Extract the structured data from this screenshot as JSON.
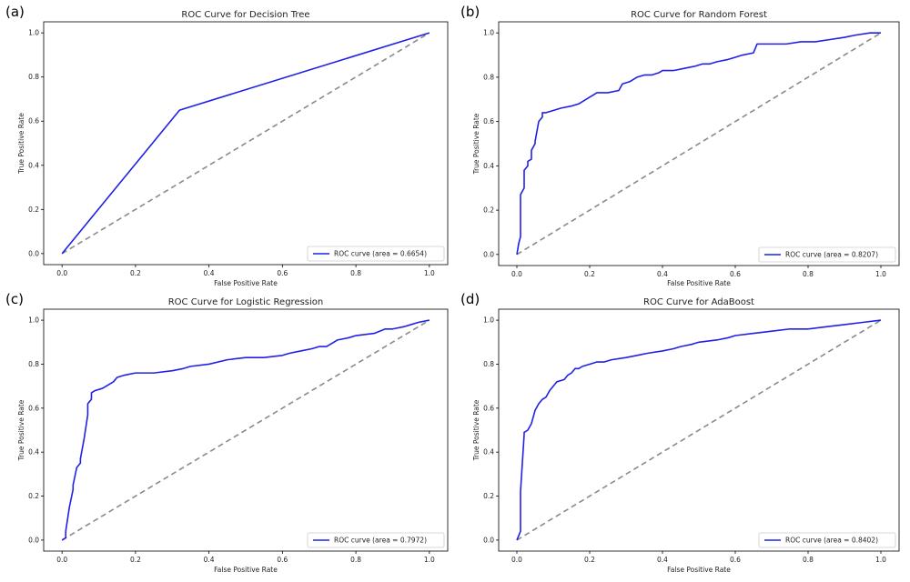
{
  "figure": {
    "colors": {
      "roc_line": "#2121e6",
      "diagonal": "#8a8a8a",
      "axis": "#000000"
    }
  },
  "chart_data": [
    {
      "panel": "(a)",
      "type": "line",
      "title": "ROC Curve for Decision Tree",
      "xlabel": "False Positive Rate",
      "ylabel": "True Positive Rate",
      "xlim": [
        -0.05,
        1.05
      ],
      "ylim": [
        -0.05,
        1.05
      ],
      "xticks": [
        "0.0",
        "0.2",
        "0.4",
        "0.6",
        "0.8",
        "1.0"
      ],
      "yticks": [
        "0.0",
        "0.2",
        "0.4",
        "0.6",
        "0.8",
        "1.0"
      ],
      "grid": false,
      "legend_position": "bottom-right",
      "series": [
        {
          "name": "ROC curve (area = 0.6654)",
          "x": [
            0.0,
            0.32,
            1.0
          ],
          "y": [
            0.0,
            0.65,
            1.0
          ]
        }
      ],
      "reference_line": {
        "x": [
          0,
          1
        ],
        "y": [
          0,
          1
        ],
        "style": "dashed"
      }
    },
    {
      "panel": "(b)",
      "type": "line",
      "title": "ROC Curve for Random Forest",
      "xlabel": "False Positive Rate",
      "ylabel": "True Positive Rate",
      "xlim": [
        -0.05,
        1.05
      ],
      "ylim": [
        -0.05,
        1.05
      ],
      "xticks": [
        "0.0",
        "0.2",
        "0.4",
        "0.6",
        "0.8",
        "1.0"
      ],
      "yticks": [
        "0.0",
        "0.2",
        "0.4",
        "0.6",
        "0.8",
        "1.0"
      ],
      "grid": false,
      "legend_position": "bottom-right",
      "series": [
        {
          "name": "ROC curve (area = 0.8207)",
          "x": [
            0,
            0.005,
            0.01,
            0.01,
            0.02,
            0.02,
            0.03,
            0.03,
            0.04,
            0.04,
            0.05,
            0.05,
            0.06,
            0.07,
            0.07,
            0.08,
            0.1,
            0.12,
            0.15,
            0.17,
            0.19,
            0.2,
            0.21,
            0.22,
            0.25,
            0.28,
            0.29,
            0.31,
            0.33,
            0.35,
            0.37,
            0.39,
            0.4,
            0.43,
            0.46,
            0.49,
            0.51,
            0.53,
            0.55,
            0.58,
            0.6,
            0.62,
            0.65,
            0.66,
            0.7,
            0.74,
            0.78,
            0.82,
            0.86,
            0.9,
            0.93,
            0.97,
            1.0
          ],
          "y": [
            0,
            0.05,
            0.08,
            0.27,
            0.3,
            0.38,
            0.4,
            0.42,
            0.43,
            0.47,
            0.5,
            0.51,
            0.6,
            0.62,
            0.64,
            0.64,
            0.65,
            0.66,
            0.67,
            0.68,
            0.7,
            0.71,
            0.72,
            0.73,
            0.73,
            0.74,
            0.77,
            0.78,
            0.8,
            0.81,
            0.81,
            0.82,
            0.83,
            0.83,
            0.84,
            0.85,
            0.86,
            0.86,
            0.87,
            0.88,
            0.89,
            0.9,
            0.91,
            0.95,
            0.95,
            0.95,
            0.96,
            0.96,
            0.97,
            0.98,
            0.99,
            1.0,
            1.0
          ]
        }
      ],
      "reference_line": {
        "x": [
          0,
          1
        ],
        "y": [
          0,
          1
        ],
        "style": "dashed"
      }
    },
    {
      "panel": "(c)",
      "type": "line",
      "title": "ROC Curve for Logistic Regression",
      "xlabel": "False Positive Rate",
      "ylabel": "True Positive Rate",
      "xlim": [
        -0.05,
        1.05
      ],
      "ylim": [
        -0.05,
        1.05
      ],
      "xticks": [
        "0.0",
        "0.2",
        "0.4",
        "0.6",
        "0.8",
        "1.0"
      ],
      "yticks": [
        "0.0",
        "0.2",
        "0.4",
        "0.6",
        "0.8",
        "1.0"
      ],
      "grid": false,
      "legend_position": "bottom-right",
      "series": [
        {
          "name": "ROC curve (area = 0.7972)",
          "x": [
            0,
            0.01,
            0.01,
            0.02,
            0.03,
            0.03,
            0.04,
            0.05,
            0.05,
            0.06,
            0.07,
            0.07,
            0.08,
            0.08,
            0.09,
            0.09,
            0.11,
            0.12,
            0.14,
            0.15,
            0.17,
            0.2,
            0.25,
            0.3,
            0.33,
            0.35,
            0.4,
            0.45,
            0.5,
            0.55,
            0.6,
            0.62,
            0.65,
            0.68,
            0.7,
            0.72,
            0.74,
            0.75,
            0.78,
            0.8,
            0.85,
            0.88,
            0.9,
            0.93,
            0.95,
            0.97,
            1.0
          ],
          "y": [
            0,
            0.01,
            0.04,
            0.15,
            0.23,
            0.25,
            0.33,
            0.35,
            0.37,
            0.46,
            0.57,
            0.62,
            0.64,
            0.67,
            0.68,
            0.68,
            0.69,
            0.7,
            0.72,
            0.74,
            0.75,
            0.76,
            0.76,
            0.77,
            0.78,
            0.79,
            0.8,
            0.82,
            0.83,
            0.83,
            0.84,
            0.85,
            0.86,
            0.87,
            0.88,
            0.88,
            0.9,
            0.91,
            0.92,
            0.93,
            0.94,
            0.96,
            0.96,
            0.97,
            0.98,
            0.99,
            1.0
          ]
        }
      ],
      "reference_line": {
        "x": [
          0,
          1
        ],
        "y": [
          0,
          1
        ],
        "style": "dashed"
      }
    },
    {
      "panel": "(d)",
      "type": "line",
      "title": "ROC Curve for AdaBoost",
      "xlabel": "False Positive Rate",
      "ylabel": "True Positive Rate",
      "xlim": [
        -0.05,
        1.05
      ],
      "ylim": [
        -0.05,
        1.05
      ],
      "xticks": [
        "0.0",
        "0.2",
        "0.4",
        "0.6",
        "0.8",
        "1.0"
      ],
      "yticks": [
        "0.0",
        "0.2",
        "0.4",
        "0.6",
        "0.8",
        "1.0"
      ],
      "grid": false,
      "legend_position": "bottom-right",
      "series": [
        {
          "name": "ROC curve (area = 0.8402)",
          "x": [
            0,
            0.01,
            0.01,
            0.02,
            0.02,
            0.03,
            0.04,
            0.05,
            0.06,
            0.07,
            0.08,
            0.09,
            0.1,
            0.11,
            0.13,
            0.14,
            0.15,
            0.16,
            0.17,
            0.18,
            0.2,
            0.22,
            0.24,
            0.26,
            0.3,
            0.33,
            0.36,
            0.4,
            0.43,
            0.45,
            0.48,
            0.5,
            0.55,
            0.58,
            0.6,
            0.65,
            0.7,
            0.75,
            0.8,
            0.85,
            0.9,
            0.95,
            1.0
          ],
          "y": [
            0,
            0.04,
            0.22,
            0.48,
            0.49,
            0.5,
            0.53,
            0.59,
            0.62,
            0.64,
            0.65,
            0.68,
            0.7,
            0.72,
            0.73,
            0.75,
            0.76,
            0.78,
            0.78,
            0.79,
            0.8,
            0.81,
            0.81,
            0.82,
            0.83,
            0.84,
            0.85,
            0.86,
            0.87,
            0.88,
            0.89,
            0.9,
            0.91,
            0.92,
            0.93,
            0.94,
            0.95,
            0.96,
            0.96,
            0.97,
            0.98,
            0.99,
            1.0
          ]
        }
      ],
      "reference_line": {
        "x": [
          0,
          1
        ],
        "y": [
          0,
          1
        ],
        "style": "dashed"
      }
    }
  ]
}
